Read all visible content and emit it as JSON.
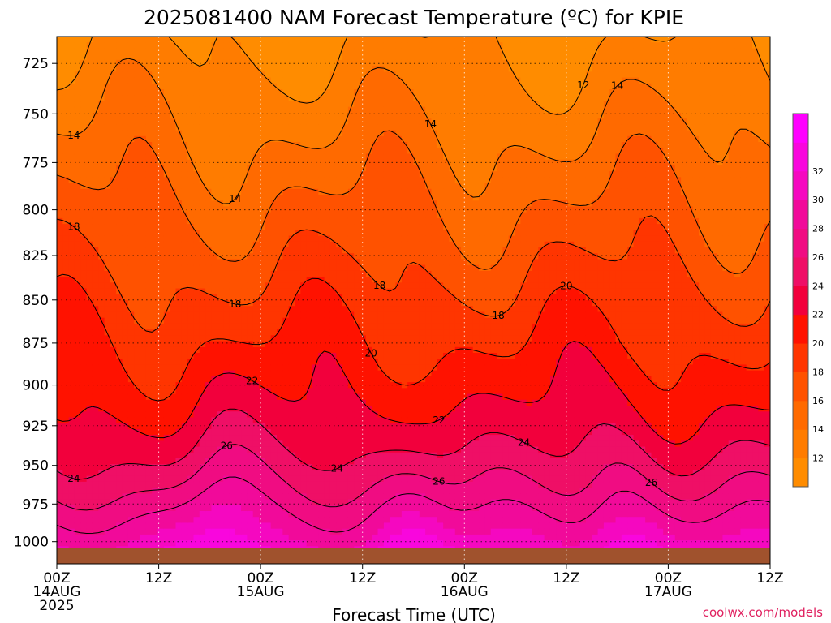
{
  "title": "2025081400 NAM Forecast Temperature (ºC) for KPIE",
  "x_axis_label": "Forecast Time (UTC)",
  "credit": "coolwx.com/models",
  "chart_data": {
    "type": "heatmap",
    "title": "2025081400 NAM Forecast Temperature (ºC) for KPIE",
    "xlabel": "Forecast Time (UTC)",
    "ylabel": "",
    "x": [
      0,
      12,
      24,
      36,
      48,
      60,
      72,
      84
    ],
    "x_tick_labels": [
      [
        "00Z",
        "14AUG",
        "2025"
      ],
      [
        "12Z"
      ],
      [
        "00Z",
        "15AUG"
      ],
      [
        "12Z"
      ],
      [
        "00Z",
        "16AUG"
      ],
      [
        "12Z"
      ],
      [
        "00Z",
        "17AUG"
      ],
      [
        "12Z"
      ]
    ],
    "xlim": [
      0,
      84
    ],
    "y_ticks": [
      725,
      750,
      775,
      800,
      825,
      850,
      875,
      900,
      925,
      950,
      975,
      1000
    ],
    "ylim": [
      1015,
      712
    ],
    "y_scale": "log-pressure (inverted)",
    "grid": true,
    "colorbar": {
      "ticks": [
        12,
        14,
        16,
        18,
        20,
        22,
        24,
        26,
        28,
        30,
        32
      ],
      "levels": [
        10,
        12,
        14,
        16,
        18,
        20,
        22,
        24,
        26,
        28,
        30,
        32,
        34
      ],
      "colors": [
        "#ff8c00",
        "#ff7c00",
        "#ff6a00",
        "#ff5200",
        "#ff3500",
        "#ff1200",
        "#f2003c",
        "#ef0f66",
        "#f00c82",
        "#f10a9a",
        "#f508c0",
        "#f906dd",
        "#ff00ff"
      ]
    },
    "contour_labels": [
      "12",
      "14",
      "16",
      "18",
      "20",
      "22",
      "24",
      "26"
    ],
    "ground_color": "#a0522d"
  }
}
